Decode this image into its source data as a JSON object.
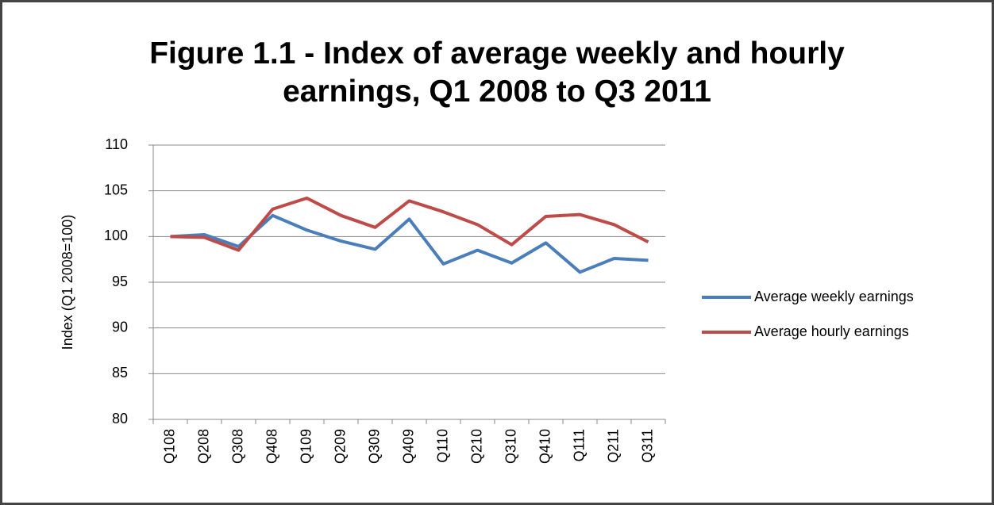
{
  "chart_data": {
    "type": "line",
    "title": "Figure 1.1 - Index of average weekly and hourly earnings, Q1 2008 to Q3 2011",
    "y_label": "Index (Q1 2008=100)",
    "categories": [
      "Q108",
      "Q208",
      "Q308",
      "Q408",
      "Q109",
      "Q209",
      "Q309",
      "Q409",
      "Q110",
      "Q210",
      "Q310",
      "Q410",
      "Q111",
      "Q211",
      "Q311"
    ],
    "series": [
      {
        "name": "Average weekly earnings",
        "color": "#4a7ebb",
        "values": [
          100,
          100.2,
          98.9,
          102.3,
          100.7,
          99.5,
          98.6,
          101.9,
          97.0,
          98.5,
          97.1,
          99.3,
          96.1,
          97.6,
          97.4
        ]
      },
      {
        "name": "Average hourly earnings",
        "color": "#be4b48",
        "values": [
          100,
          99.9,
          98.5,
          103.0,
          104.2,
          102.3,
          101.0,
          103.9,
          102.7,
          101.3,
          99.1,
          102.2,
          102.4,
          101.3,
          99.4
        ]
      }
    ],
    "ylim": [
      80,
      110
    ],
    "yticks": [
      80,
      85,
      90,
      95,
      100,
      105,
      110
    ],
    "grid": true,
    "legend": "right"
  }
}
